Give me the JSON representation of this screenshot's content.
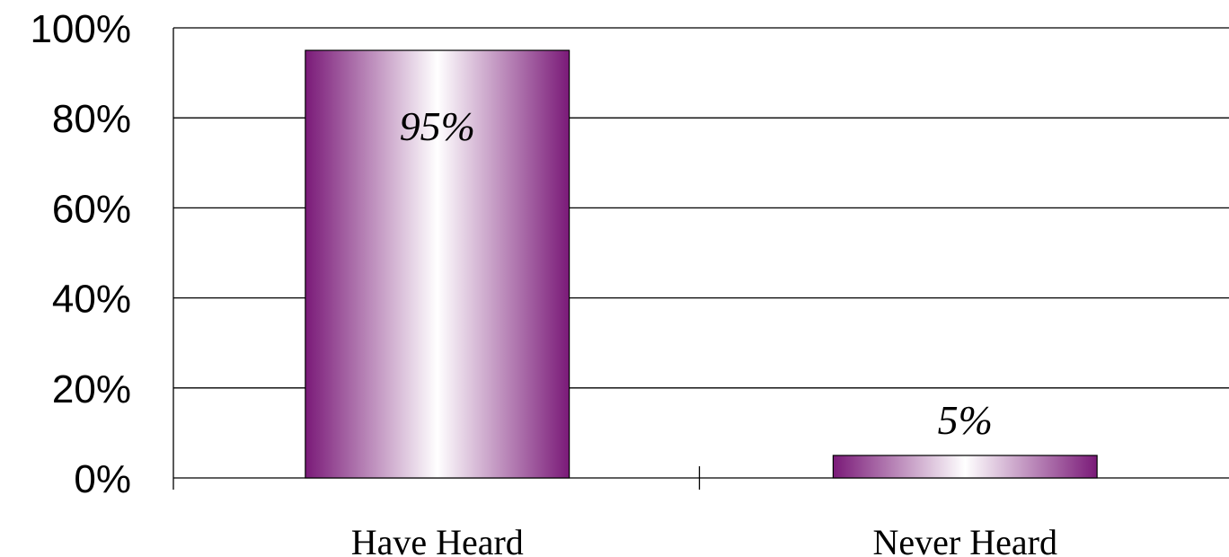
{
  "chart_data": {
    "type": "bar",
    "categories": [
      "Have Heard",
      "Never Heard"
    ],
    "values": [
      95,
      5
    ],
    "data_labels": [
      "95%",
      "5%"
    ],
    "title": "",
    "xlabel": "",
    "ylabel": "",
    "ylim": [
      0,
      100
    ],
    "yticks": [
      0,
      20,
      40,
      60,
      80,
      100
    ],
    "ytick_labels": [
      "0%",
      "20%",
      "40%",
      "60%",
      "80%",
      "100%"
    ],
    "grid": true,
    "legend": "none",
    "colors": {
      "bar_edge": "#7a1a78",
      "bar_center": "#ffffff"
    }
  }
}
